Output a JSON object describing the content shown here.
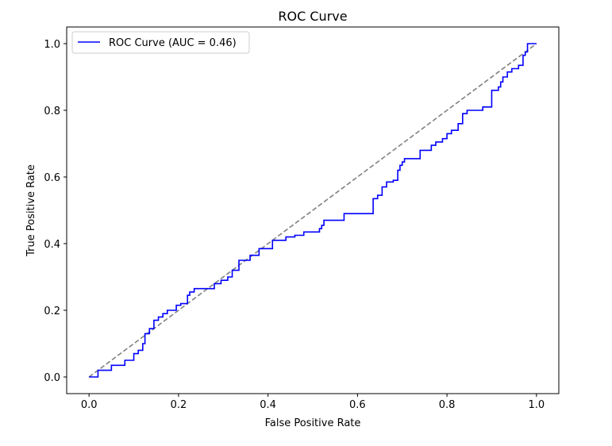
{
  "chart_data": {
    "type": "line",
    "title": "ROC Curve",
    "xlabel": "False Positive Rate",
    "ylabel": "True Positive Rate",
    "xlim": [
      -0.05,
      1.05
    ],
    "ylim": [
      -0.05,
      1.05
    ],
    "xticks": [
      "0.0",
      "0.2",
      "0.4",
      "0.6",
      "0.8",
      "1.0"
    ],
    "yticks": [
      "0.0",
      "0.2",
      "0.4",
      "0.6",
      "0.8",
      "1.0"
    ],
    "grid": false,
    "legend": {
      "placement": "upper-left",
      "entries": [
        "ROC Curve (AUC = 0.46)"
      ]
    },
    "series": [
      {
        "name": "ROC Curve (AUC = 0.46)",
        "color": "#0000ff",
        "style": "solid",
        "points": [
          [
            0.0,
            0.0
          ],
          [
            0.02,
            0.0
          ],
          [
            0.02,
            0.02
          ],
          [
            0.05,
            0.02
          ],
          [
            0.05,
            0.035
          ],
          [
            0.08,
            0.035
          ],
          [
            0.08,
            0.05
          ],
          [
            0.1,
            0.05
          ],
          [
            0.1,
            0.07
          ],
          [
            0.11,
            0.07
          ],
          [
            0.11,
            0.08
          ],
          [
            0.12,
            0.08
          ],
          [
            0.12,
            0.1
          ],
          [
            0.125,
            0.1
          ],
          [
            0.125,
            0.13
          ],
          [
            0.135,
            0.13
          ],
          [
            0.135,
            0.145
          ],
          [
            0.145,
            0.145
          ],
          [
            0.145,
            0.17
          ],
          [
            0.155,
            0.17
          ],
          [
            0.155,
            0.18
          ],
          [
            0.165,
            0.18
          ],
          [
            0.165,
            0.19
          ],
          [
            0.175,
            0.19
          ],
          [
            0.175,
            0.2
          ],
          [
            0.195,
            0.2
          ],
          [
            0.195,
            0.215
          ],
          [
            0.205,
            0.215
          ],
          [
            0.205,
            0.22
          ],
          [
            0.22,
            0.22
          ],
          [
            0.22,
            0.245
          ],
          [
            0.225,
            0.245
          ],
          [
            0.225,
            0.255
          ],
          [
            0.235,
            0.255
          ],
          [
            0.235,
            0.265
          ],
          [
            0.28,
            0.265
          ],
          [
            0.28,
            0.28
          ],
          [
            0.295,
            0.28
          ],
          [
            0.295,
            0.29
          ],
          [
            0.31,
            0.29
          ],
          [
            0.31,
            0.3
          ],
          [
            0.32,
            0.3
          ],
          [
            0.32,
            0.32
          ],
          [
            0.335,
            0.32
          ],
          [
            0.335,
            0.35
          ],
          [
            0.36,
            0.35
          ],
          [
            0.36,
            0.365
          ],
          [
            0.38,
            0.365
          ],
          [
            0.38,
            0.385
          ],
          [
            0.41,
            0.385
          ],
          [
            0.41,
            0.41
          ],
          [
            0.44,
            0.41
          ],
          [
            0.44,
            0.42
          ],
          [
            0.46,
            0.42
          ],
          [
            0.46,
            0.425
          ],
          [
            0.48,
            0.425
          ],
          [
            0.48,
            0.435
          ],
          [
            0.515,
            0.435
          ],
          [
            0.515,
            0.445
          ],
          [
            0.52,
            0.445
          ],
          [
            0.52,
            0.455
          ],
          [
            0.525,
            0.455
          ],
          [
            0.525,
            0.47
          ],
          [
            0.57,
            0.47
          ],
          [
            0.57,
            0.49
          ],
          [
            0.635,
            0.49
          ],
          [
            0.635,
            0.535
          ],
          [
            0.645,
            0.535
          ],
          [
            0.645,
            0.545
          ],
          [
            0.655,
            0.545
          ],
          [
            0.655,
            0.57
          ],
          [
            0.665,
            0.57
          ],
          [
            0.665,
            0.585
          ],
          [
            0.68,
            0.585
          ],
          [
            0.68,
            0.59
          ],
          [
            0.69,
            0.59
          ],
          [
            0.69,
            0.62
          ],
          [
            0.695,
            0.62
          ],
          [
            0.695,
            0.635
          ],
          [
            0.7,
            0.635
          ],
          [
            0.7,
            0.645
          ],
          [
            0.705,
            0.645
          ],
          [
            0.705,
            0.655
          ],
          [
            0.74,
            0.655
          ],
          [
            0.74,
            0.68
          ],
          [
            0.765,
            0.68
          ],
          [
            0.765,
            0.695
          ],
          [
            0.775,
            0.695
          ],
          [
            0.775,
            0.705
          ],
          [
            0.79,
            0.705
          ],
          [
            0.79,
            0.715
          ],
          [
            0.8,
            0.715
          ],
          [
            0.8,
            0.73
          ],
          [
            0.81,
            0.73
          ],
          [
            0.81,
            0.74
          ],
          [
            0.825,
            0.74
          ],
          [
            0.825,
            0.76
          ],
          [
            0.835,
            0.76
          ],
          [
            0.835,
            0.79
          ],
          [
            0.845,
            0.79
          ],
          [
            0.845,
            0.8
          ],
          [
            0.88,
            0.8
          ],
          [
            0.88,
            0.81
          ],
          [
            0.9,
            0.81
          ],
          [
            0.9,
            0.86
          ],
          [
            0.915,
            0.86
          ],
          [
            0.915,
            0.87
          ],
          [
            0.92,
            0.87
          ],
          [
            0.92,
            0.885
          ],
          [
            0.925,
            0.885
          ],
          [
            0.925,
            0.9
          ],
          [
            0.935,
            0.9
          ],
          [
            0.935,
            0.915
          ],
          [
            0.945,
            0.915
          ],
          [
            0.945,
            0.925
          ],
          [
            0.96,
            0.925
          ],
          [
            0.96,
            0.935
          ],
          [
            0.97,
            0.935
          ],
          [
            0.97,
            0.965
          ],
          [
            0.975,
            0.965
          ],
          [
            0.975,
            0.975
          ],
          [
            0.98,
            0.975
          ],
          [
            0.98,
            1.0
          ],
          [
            1.0,
            1.0
          ]
        ]
      },
      {
        "color": "#808080",
        "style": "dashed",
        "points": [
          [
            0.0,
            0.0
          ],
          [
            1.0,
            1.0
          ]
        ]
      }
    ]
  }
}
